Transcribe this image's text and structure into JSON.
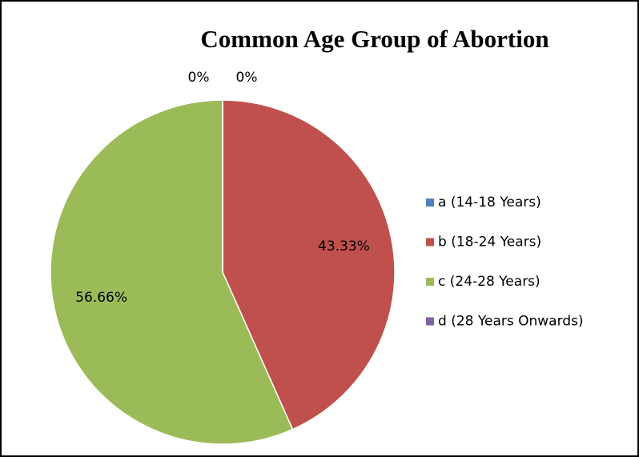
{
  "chart_data": {
    "type": "pie",
    "title": "Common Age Group of Abortion",
    "categories": [
      "a (14-18 Years)",
      "b (18-24 Years)",
      "c (24-28 Years)",
      "d (28 Years Onwards)"
    ],
    "values": [
      0,
      43.33,
      56.66,
      0
    ],
    "value_labels": [
      "0%",
      "43.33%",
      "56.66%",
      "0%"
    ],
    "colors": [
      "#4f81bd",
      "#c0504d",
      "#9bbb59",
      "#8064a2"
    ],
    "legend": "right"
  }
}
